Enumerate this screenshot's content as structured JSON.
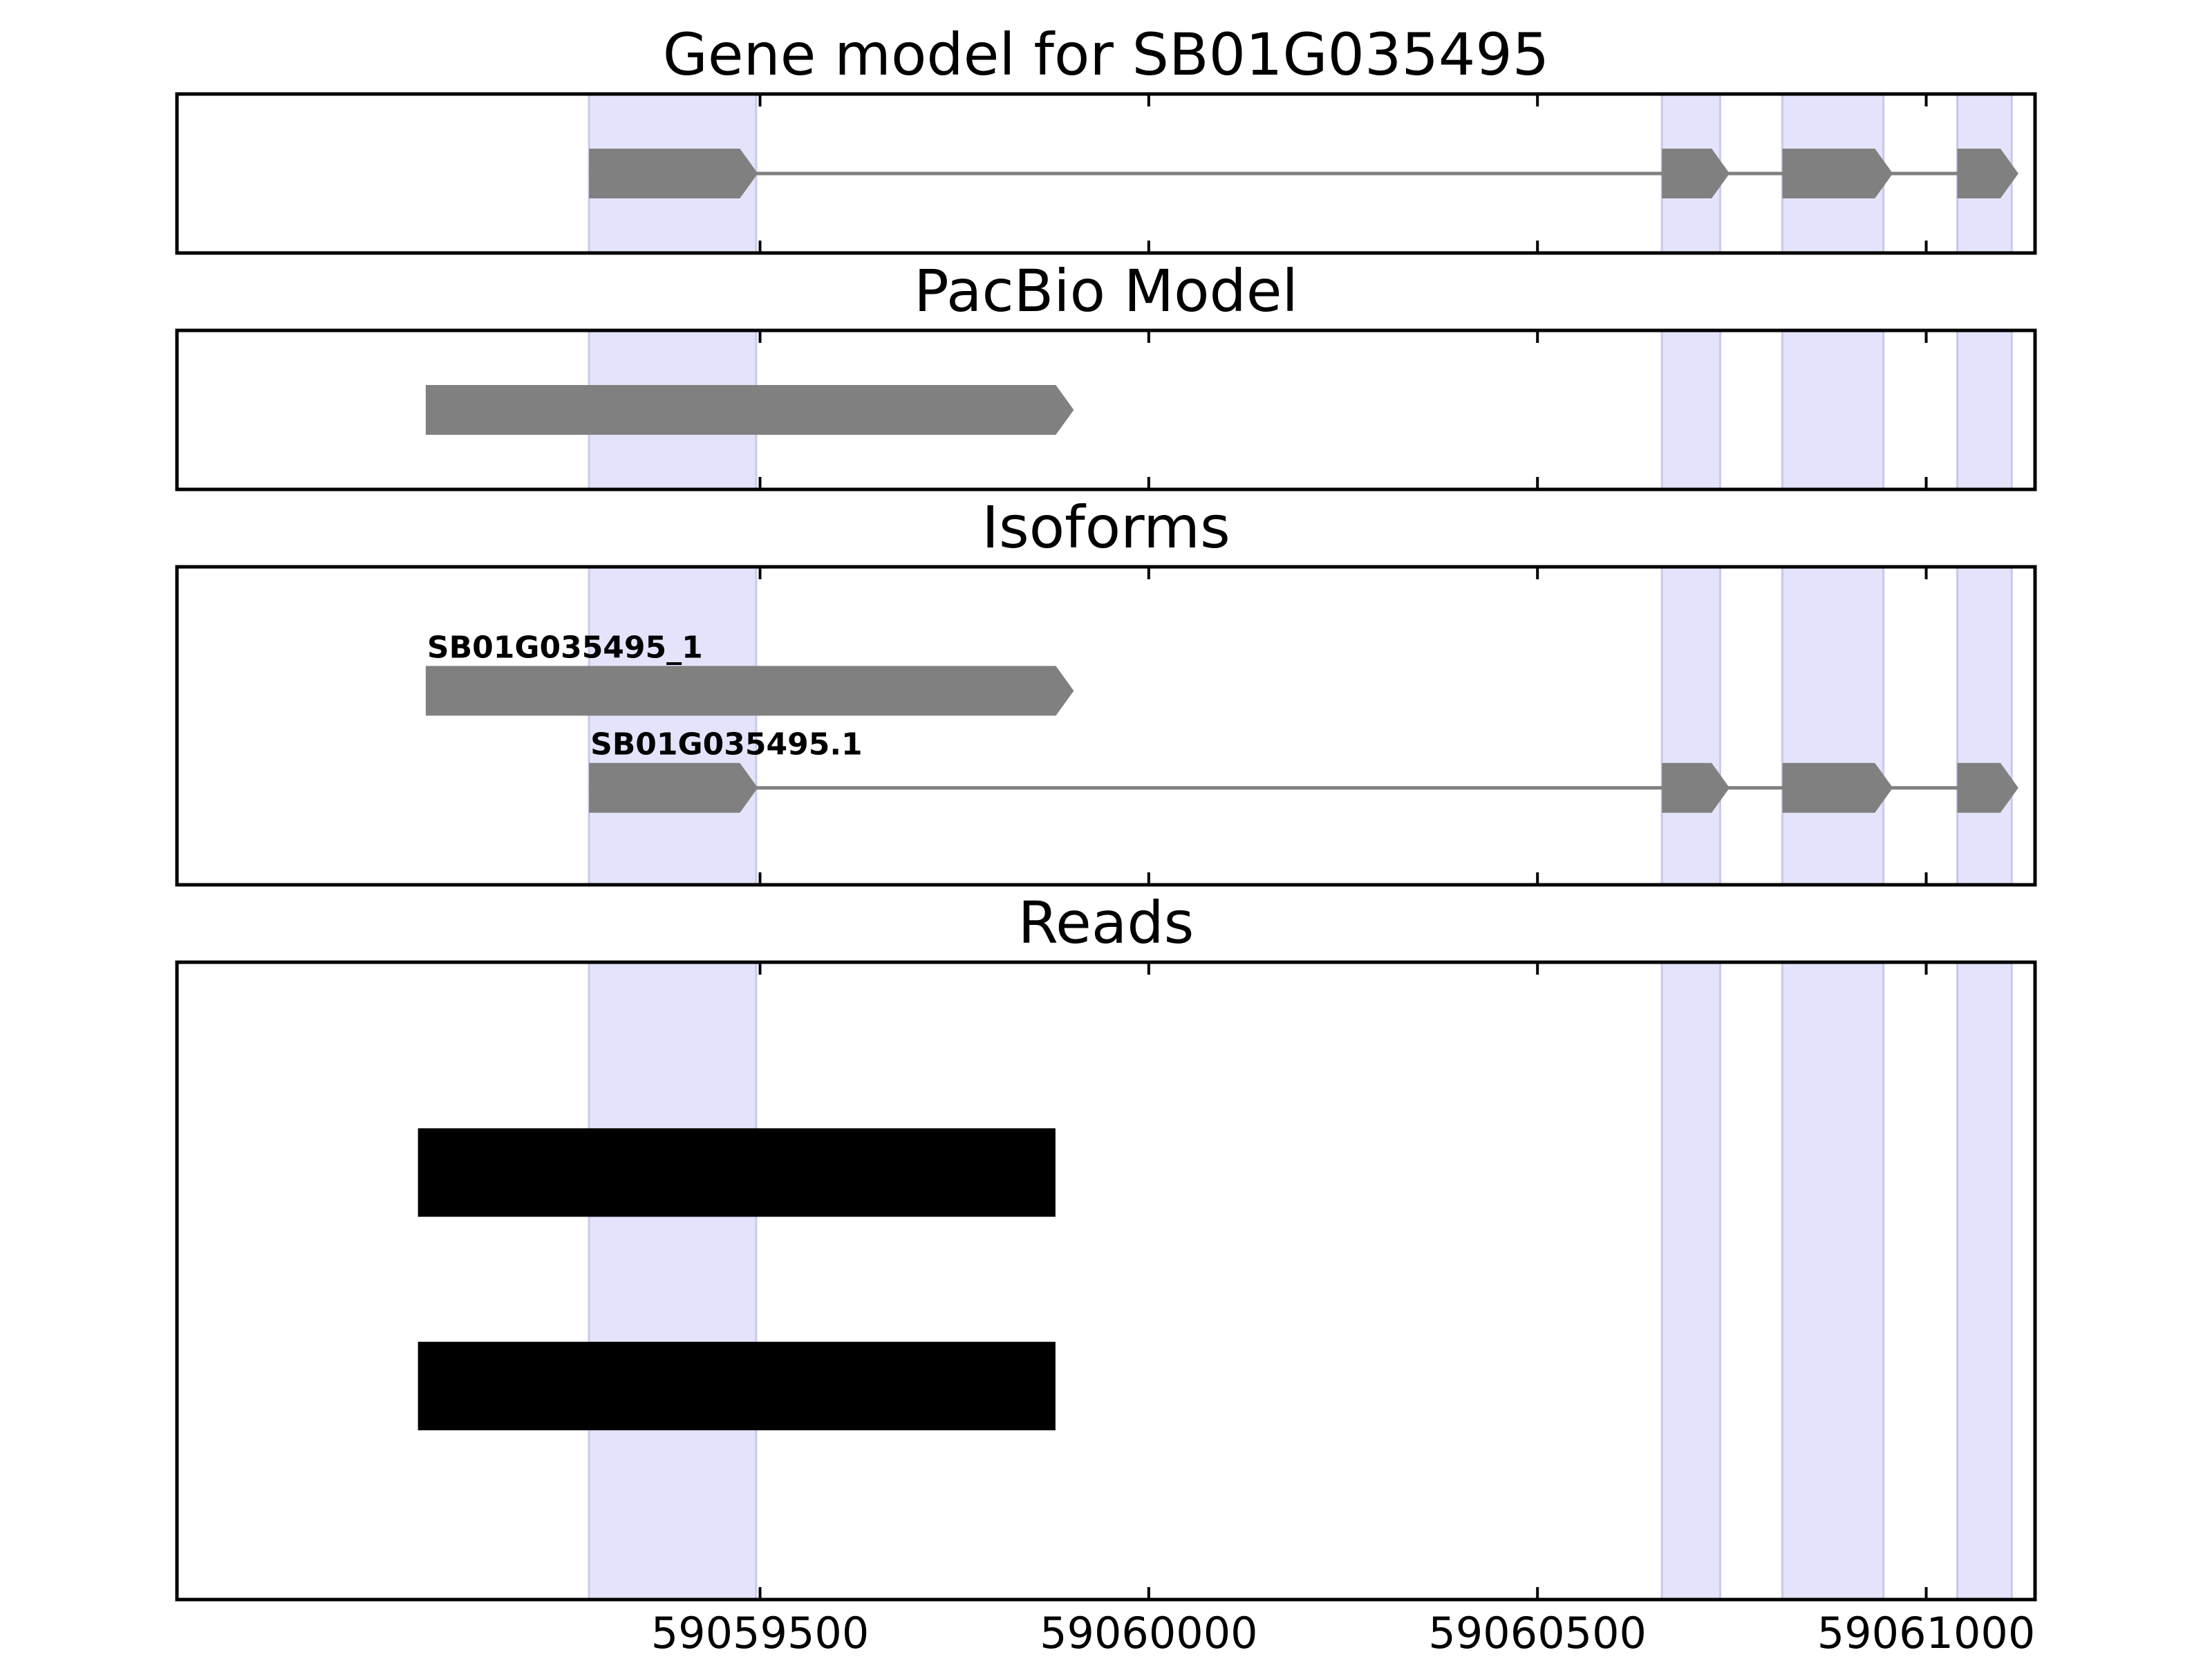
{
  "chart_data": {
    "type": "gene-track",
    "x_range": [
      59058750,
      59061140
    ],
    "x_ticks": [
      59059500,
      59060000,
      59060500,
      59061000
    ],
    "x_tick_labels": [
      "59059500",
      "59060000",
      "59060500",
      "59061000"
    ],
    "highlight_color": "#e3e3fb",
    "feature_color": "#808080",
    "read_color": "#000000",
    "exon_highlights": [
      [
        59059280,
        59059495
      ],
      [
        59060660,
        59060735
      ],
      [
        59060815,
        59060945
      ],
      [
        59061040,
        59061110
      ]
    ],
    "panels": [
      {
        "title": "Gene model for SB01G035495",
        "kind": "gene",
        "tracks": [
          {
            "label": "",
            "exons": [
              [
                59059280,
                59059490
              ],
              [
                59060660,
                59060740
              ],
              [
                59060815,
                59060950
              ],
              [
                59061040,
                59061115
              ]
            ]
          }
        ]
      },
      {
        "title": "PacBio Model",
        "kind": "gene",
        "tracks": [
          {
            "label": "",
            "exons": [
              [
                59059070,
                59059900
              ]
            ]
          }
        ]
      },
      {
        "title": "Isoforms",
        "kind": "gene",
        "tracks": [
          {
            "label": "SB01G035495_1",
            "exons": [
              [
                59059070,
                59059900
              ]
            ]
          },
          {
            "label": "SB01G035495.1",
            "exons": [
              [
                59059280,
                59059490
              ],
              [
                59060660,
                59060740
              ],
              [
                59060815,
                59060950
              ],
              [
                59061040,
                59061115
              ]
            ]
          }
        ]
      },
      {
        "title": "Reads",
        "kind": "reads",
        "reads": [
          [
            59059060,
            59059880
          ],
          [
            59059060,
            59059880
          ]
        ]
      }
    ]
  }
}
